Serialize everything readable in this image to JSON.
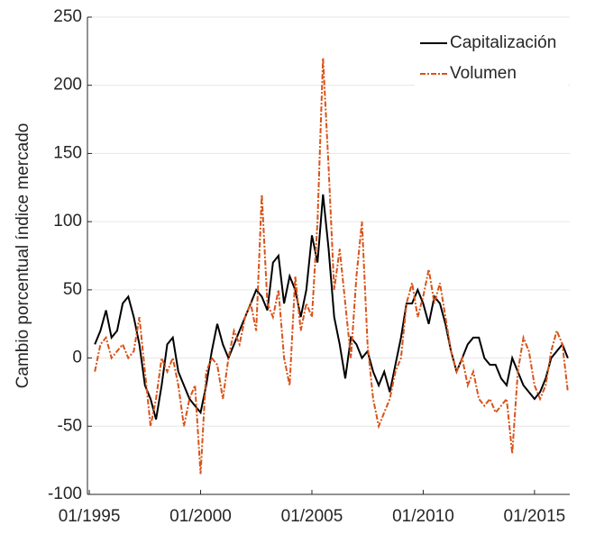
{
  "chart_data": {
    "type": "line",
    "y_label": "Cambio porcentual índice mercado",
    "x": [
      "04/1995",
      "07/1995",
      "10/1995",
      "01/1996",
      "04/1996",
      "07/1996",
      "10/1996",
      "01/1997",
      "04/1997",
      "07/1997",
      "10/1997",
      "01/1998",
      "04/1998",
      "07/1998",
      "10/1998",
      "01/1999",
      "04/1999",
      "07/1999",
      "10/1999",
      "01/2000",
      "04/2000",
      "07/2000",
      "10/2000",
      "01/2001",
      "04/2001",
      "07/2001",
      "10/2001",
      "01/2002",
      "04/2002",
      "07/2002",
      "10/2002",
      "01/2003",
      "04/2003",
      "07/2003",
      "10/2003",
      "01/2004",
      "04/2004",
      "07/2004",
      "10/2004",
      "01/2005",
      "04/2005",
      "07/2005",
      "10/2005",
      "01/2006",
      "04/2006",
      "07/2006",
      "10/2006",
      "01/2007",
      "04/2007",
      "07/2007",
      "10/2007",
      "01/2008",
      "04/2008",
      "07/2008",
      "10/2008",
      "01/2009",
      "04/2009",
      "07/2009",
      "10/2009",
      "01/2010",
      "04/2010",
      "07/2010",
      "10/2010",
      "01/2011",
      "04/2011",
      "07/2011",
      "10/2011",
      "01/2012",
      "04/2012",
      "07/2012",
      "10/2012",
      "01/2013",
      "04/2013",
      "07/2013",
      "10/2013",
      "01/2014",
      "04/2014",
      "07/2014",
      "10/2014",
      "01/2015",
      "04/2015",
      "07/2015",
      "10/2015",
      "01/2016",
      "04/2016",
      "07/2016"
    ],
    "series": [
      {
        "name": "Capitalización",
        "color": "#000000",
        "dash": "solid",
        "values": [
          10,
          20,
          35,
          15,
          20,
          40,
          45,
          30,
          10,
          -20,
          -30,
          -45,
          -20,
          10,
          15,
          -10,
          -20,
          -30,
          -35,
          -40,
          -20,
          5,
          25,
          10,
          0,
          10,
          20,
          30,
          40,
          50,
          45,
          35,
          70,
          75,
          40,
          60,
          50,
          30,
          50,
          90,
          70,
          120,
          80,
          30,
          10,
          -15,
          15,
          10,
          0,
          5,
          -10,
          -20,
          -10,
          -25,
          -5,
          15,
          40,
          40,
          50,
          40,
          25,
          45,
          40,
          25,
          5,
          -10,
          0,
          10,
          15,
          15,
          0,
          -5,
          -5,
          -15,
          -20,
          0,
          -10,
          -20,
          -25,
          -30,
          -25,
          -15,
          0,
          5,
          10,
          0
        ]
      },
      {
        "name": "Volumen",
        "color": "#d95319",
        "dash": "dashdot",
        "values": [
          -10,
          10,
          15,
          0,
          5,
          10,
          0,
          5,
          30,
          -10,
          -50,
          -30,
          0,
          -10,
          0,
          -20,
          -50,
          -30,
          -20,
          -85,
          -10,
          0,
          -5,
          -30,
          0,
          20,
          10,
          30,
          40,
          20,
          120,
          40,
          30,
          50,
          0,
          -20,
          60,
          20,
          40,
          30,
          100,
          220,
          140,
          50,
          80,
          40,
          0,
          60,
          100,
          10,
          -30,
          -50,
          -40,
          -30,
          -10,
          0,
          40,
          55,
          30,
          45,
          65,
          40,
          55,
          30,
          5,
          -10,
          0,
          -20,
          -10,
          -30,
          -35,
          -30,
          -40,
          -35,
          -30,
          -70,
          -10,
          15,
          5,
          -20,
          -30,
          -20,
          5,
          20,
          10,
          -25
        ]
      }
    ],
    "xlim": [
      "12/1994",
      "08/2016"
    ],
    "xticks": [
      "01/1995",
      "01/2000",
      "01/2005",
      "01/2010",
      "01/2015"
    ],
    "ylim": [
      -100,
      250
    ],
    "yticks": [
      -100,
      -50,
      0,
      50,
      100,
      150,
      200,
      250
    ],
    "grid": true,
    "legend": "top-right"
  }
}
